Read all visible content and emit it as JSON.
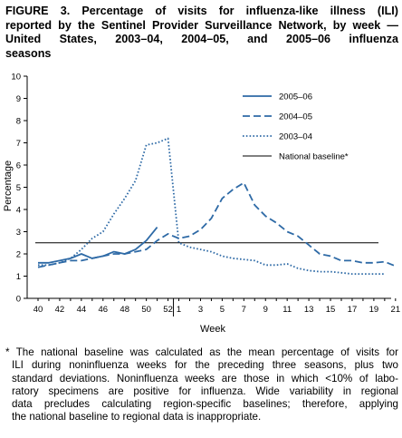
{
  "title_lines": [
    "FIGURE 3. Percentage of visits for influenza-like illness (ILI)",
    "reported by the Sentinel Provider Surveillance Network, by week —",
    "United States, 2003–04, 2004–05, and 2005–06 influenza",
    "seasons"
  ],
  "footnote_lines": [
    "* The national baseline was calculated as the mean percentage of visits for",
    "ILI during noninfluenza weeks for the preceding three seasons, plus two",
    "standard deviations. Noninfluenza weeks are those in which <10% of labo-",
    "ratory specimens are positive for influenza. Wide variability in regional",
    "data precludes calculating region-specific baselines; therefore, applying",
    "the national baseline to regional data is inappropriate."
  ],
  "colors": {
    "series_2005_06": "#2e6aa6",
    "series_2004_05": "#2e6aa6",
    "series_2003_04": "#2e6aa6",
    "baseline": "#000000"
  },
  "chart_data": {
    "type": "line",
    "xlabel": "Week",
    "ylabel": "Percentage",
    "ylim": [
      0,
      10
    ],
    "yticks": [
      0,
      1,
      2,
      3,
      4,
      5,
      6,
      7,
      8,
      9,
      10
    ],
    "x_weeks": [
      40,
      41,
      42,
      43,
      44,
      45,
      46,
      47,
      48,
      49,
      50,
      51,
      52,
      1,
      2,
      3,
      4,
      5,
      6,
      7,
      8,
      9,
      10,
      11,
      12,
      13,
      14,
      15,
      16,
      17,
      18,
      19,
      20,
      21
    ],
    "xtick_labels": [
      "40",
      "42",
      "44",
      "46",
      "48",
      "50",
      "52",
      "1",
      "3",
      "5",
      "7",
      "9",
      "11",
      "13",
      "15",
      "17",
      "19",
      "21"
    ],
    "legend_position": "top-right",
    "baseline": {
      "name": "National baseline*",
      "value": 2.5
    },
    "series": [
      {
        "name": "2005–06",
        "style": "solid",
        "values": [
          1.6,
          1.6,
          1.7,
          1.8,
          2.0,
          1.8,
          1.9,
          2.1,
          2.0,
          2.2,
          2.6,
          3.2
        ]
      },
      {
        "name": "2004–05",
        "style": "dashed",
        "values": [
          1.4,
          1.5,
          1.6,
          1.7,
          1.7,
          1.8,
          1.9,
          2.0,
          2.0,
          2.1,
          2.2,
          2.6,
          2.9,
          2.7,
          2.8,
          3.1,
          3.6,
          4.5,
          4.9,
          5.2,
          4.2,
          3.7,
          3.4,
          3.0,
          2.8,
          2.4,
          2.0,
          1.9,
          1.7,
          1.7,
          1.6,
          1.6,
          1.65,
          1.45
        ]
      },
      {
        "name": "2003–04",
        "style": "dotted",
        "values": [
          1.5,
          1.5,
          1.6,
          1.8,
          2.2,
          2.7,
          3.0,
          3.8,
          4.5,
          5.3,
          6.9,
          7.0,
          7.2,
          2.5,
          2.3,
          2.2,
          2.1,
          1.9,
          1.8,
          1.75,
          1.7,
          1.5,
          1.5,
          1.55,
          1.35,
          1.25,
          1.2,
          1.2,
          1.15,
          1.1,
          1.1,
          1.1,
          1.1
        ]
      }
    ]
  }
}
